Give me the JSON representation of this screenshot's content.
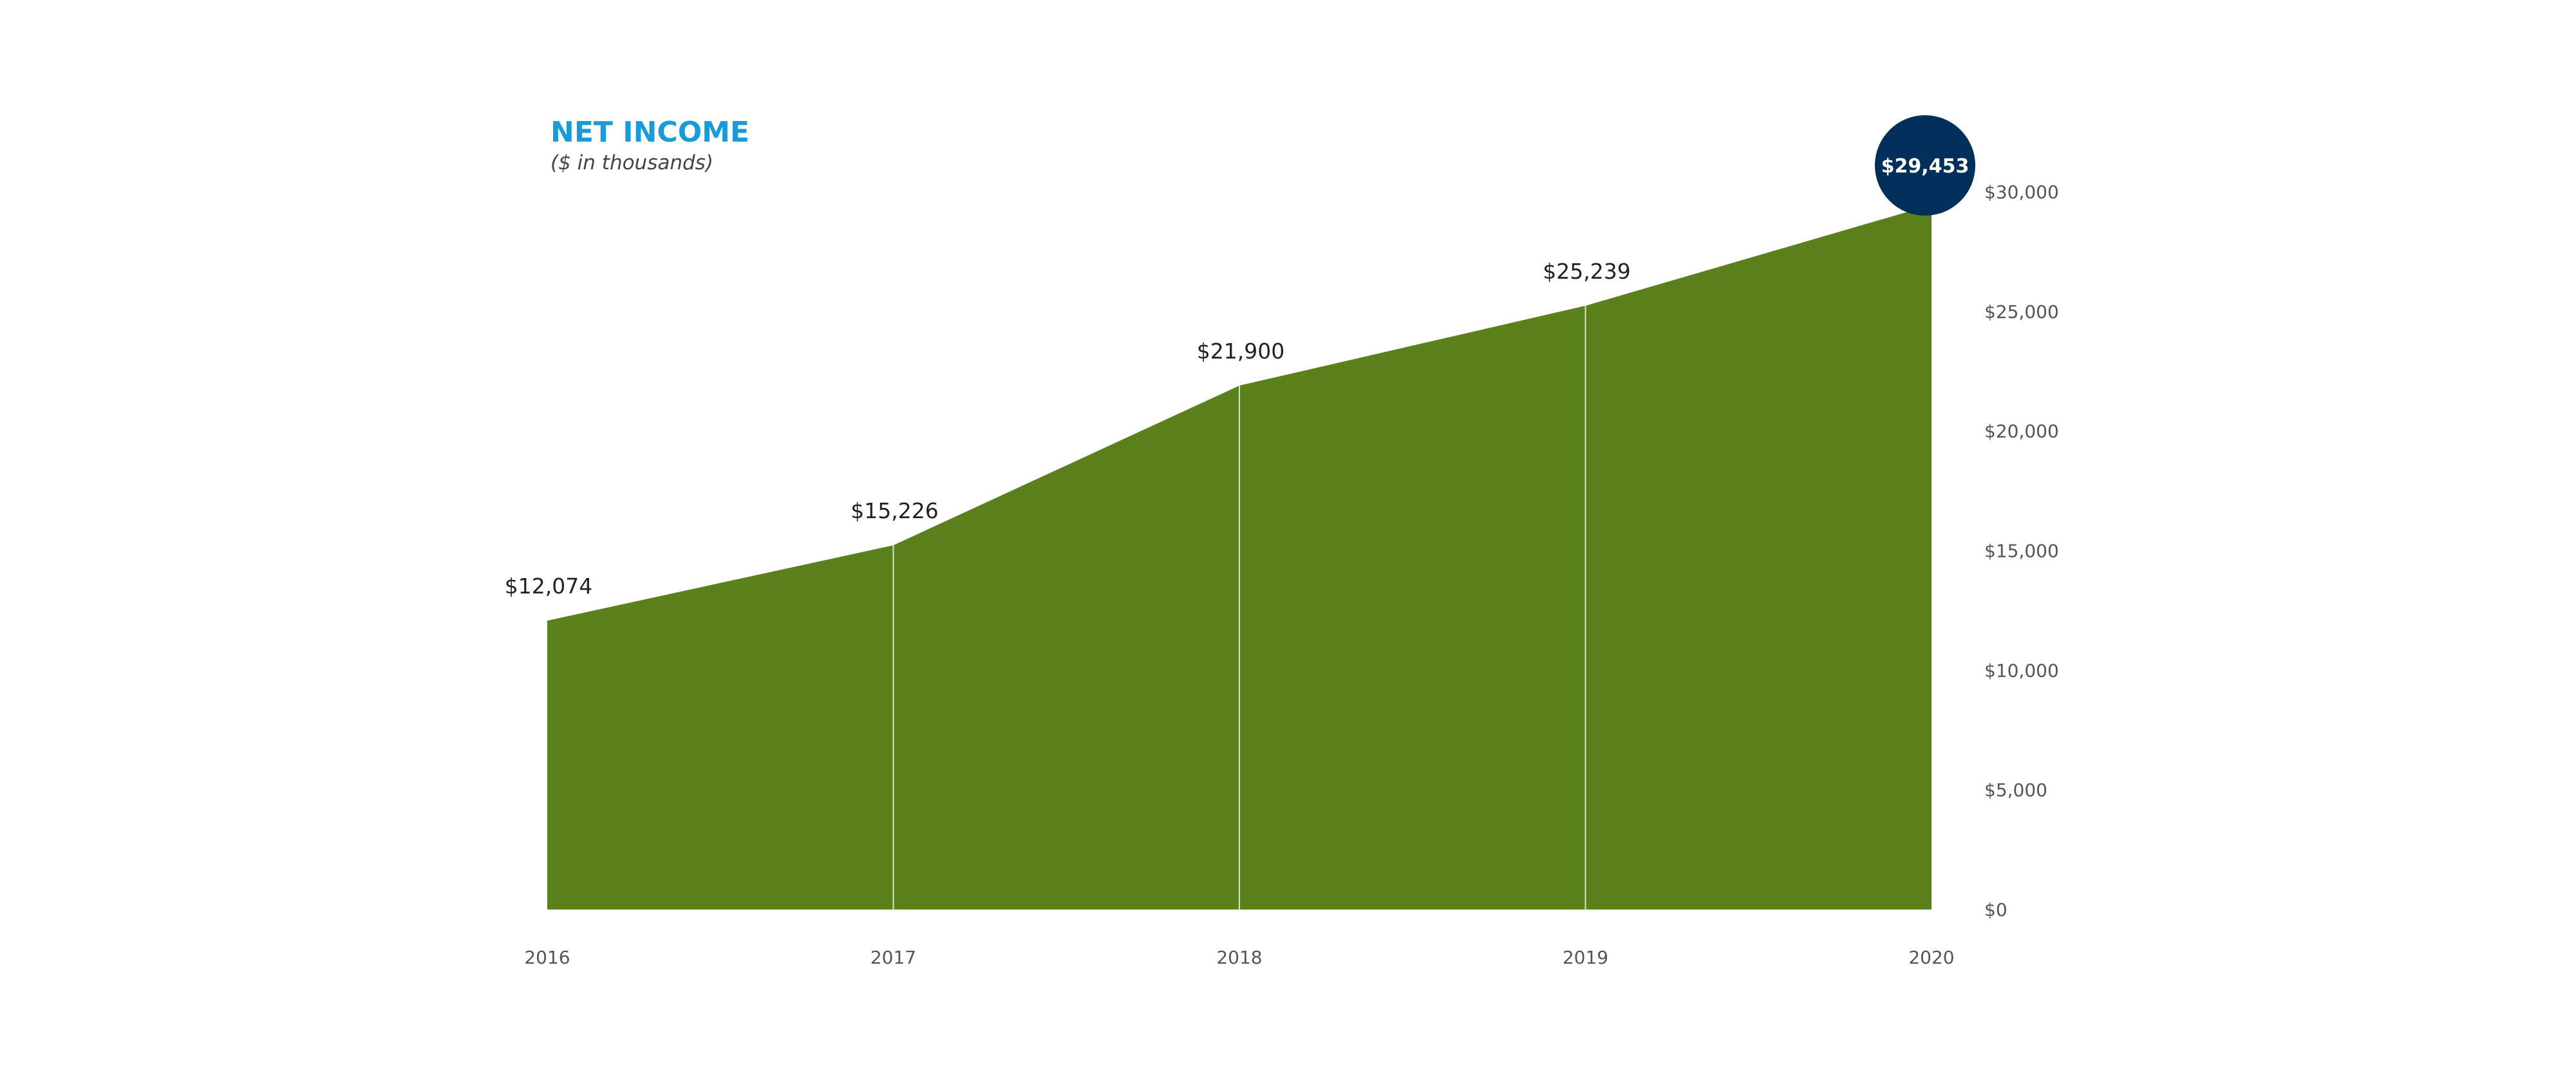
{
  "colors": {
    "area": "#5b811c",
    "divider": "#d7e3c2",
    "title": "#1a9ad6",
    "subtitle": "#444444",
    "data_label": "#222222",
    "tick_label": "#555555",
    "highlight_bg": "#00305a",
    "highlight_text": "#ffffff"
  },
  "chart_data": {
    "type": "area",
    "title": "NET INCOME",
    "subtitle": "($ in thousands)",
    "x": [
      "2016",
      "2017",
      "2018",
      "2019",
      "2020"
    ],
    "values": [
      12074,
      15226,
      21900,
      25239,
      29453
    ],
    "value_labels": [
      "$12,074",
      "$15,226",
      "$21,900",
      "$25,239",
      "$29,453"
    ],
    "highlight_index": 4,
    "ylim": [
      0,
      30000
    ],
    "y_ticks": [
      0,
      5000,
      10000,
      15000,
      20000,
      25000,
      30000
    ],
    "y_tick_labels": [
      "$0",
      "$5,000",
      "$10,000",
      "$15,000",
      "$20,000",
      "$25,000",
      "$30,000"
    ],
    "y_axis_side": "right",
    "grid": false,
    "legend": "none"
  }
}
